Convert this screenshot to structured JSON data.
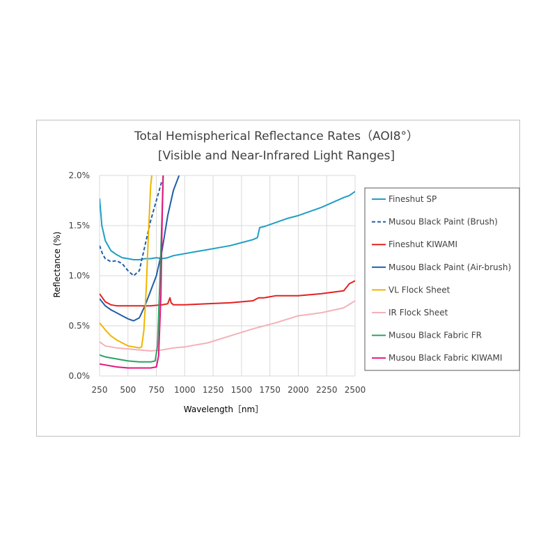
{
  "chart_data": {
    "type": "line",
    "title": "Total Hemispherical Reflectance Rates（AOI8°）",
    "subtitle": "[Visible and Near-Infrared Light Ranges]",
    "xlabel": "Wavelength［nm］",
    "ylabel": "Reflectance (%)",
    "xlim": [
      250,
      2500
    ],
    "ylim": [
      0,
      2.0
    ],
    "x_ticks": [
      250,
      500,
      750,
      1000,
      1250,
      1500,
      1750,
      2000,
      2250,
      2500
    ],
    "y_ticks": [
      "0.0%",
      "0.5%",
      "1.0%",
      "1.5%",
      "2.0%"
    ],
    "grid": true,
    "legend_position": "right",
    "series": [
      {
        "name": "Fineshut SP",
        "color": "#1f9ec4",
        "dash": "solid",
        "x": [
          250,
          270,
          300,
          350,
          400,
          450,
          500,
          550,
          600,
          650,
          700,
          750,
          800,
          850,
          900,
          1000,
          1100,
          1200,
          1300,
          1400,
          1500,
          1600,
          1640,
          1660,
          1700,
          1800,
          1900,
          2000,
          2100,
          2200,
          2300,
          2400,
          2450,
          2500
        ],
        "y": [
          1.77,
          1.5,
          1.35,
          1.25,
          1.21,
          1.18,
          1.17,
          1.16,
          1.16,
          1.17,
          1.17,
          1.18,
          1.17,
          1.18,
          1.2,
          1.22,
          1.24,
          1.26,
          1.28,
          1.3,
          1.33,
          1.36,
          1.38,
          1.48,
          1.49,
          1.53,
          1.57,
          1.6,
          1.64,
          1.68,
          1.73,
          1.78,
          1.8,
          1.84
        ]
      },
      {
        "name": "Musou Black Paint (Brush)",
        "color": "#1f5ea8",
        "dash": "dashed",
        "x": [
          250,
          275,
          300,
          350,
          400,
          450,
          500,
          550,
          600,
          650,
          700,
          750,
          800
        ],
        "y": [
          1.3,
          1.22,
          1.17,
          1.14,
          1.15,
          1.12,
          1.05,
          1.0,
          1.05,
          1.3,
          1.55,
          1.75,
          1.95
        ]
      },
      {
        "name": "Fineshut KIWAMI",
        "color": "#e3211f",
        "dash": "solid",
        "x": [
          250,
          300,
          350,
          400,
          500,
          600,
          700,
          800,
          850,
          870,
          880,
          900,
          1000,
          1200,
          1400,
          1600,
          1650,
          1700,
          1800,
          2000,
          2200,
          2400,
          2450,
          2500
        ],
        "y": [
          0.82,
          0.74,
          0.71,
          0.7,
          0.7,
          0.7,
          0.7,
          0.71,
          0.72,
          0.78,
          0.73,
          0.71,
          0.71,
          0.72,
          0.73,
          0.75,
          0.78,
          0.78,
          0.8,
          0.8,
          0.82,
          0.85,
          0.92,
          0.95
        ]
      },
      {
        "name": "Musou Black Paint (Air-brush)",
        "color": "#1f5ea8",
        "dash": "solid",
        "x": [
          250,
          300,
          350,
          400,
          450,
          500,
          550,
          600,
          650,
          700,
          750,
          800,
          850,
          900,
          950
        ],
        "y": [
          0.77,
          0.7,
          0.66,
          0.63,
          0.6,
          0.57,
          0.55,
          0.58,
          0.7,
          0.85,
          1.0,
          1.25,
          1.6,
          1.85,
          2.0
        ]
      },
      {
        "name": "VL Flock Sheet",
        "color": "#f0b400",
        "dash": "solid",
        "x": [
          250,
          300,
          350,
          400,
          450,
          500,
          550,
          600,
          620,
          640,
          660,
          680,
          700,
          710
        ],
        "y": [
          0.53,
          0.46,
          0.4,
          0.36,
          0.33,
          0.3,
          0.29,
          0.28,
          0.29,
          0.45,
          0.85,
          1.4,
          1.9,
          2.0
        ]
      },
      {
        "name": "IR Flock Sheet",
        "color": "#f4b0b8",
        "dash": "solid",
        "x": [
          250,
          300,
          400,
          500,
          600,
          700,
          800,
          900,
          1000,
          1200,
          1400,
          1600,
          1800,
          2000,
          2200,
          2400,
          2500
        ],
        "y": [
          0.34,
          0.3,
          0.28,
          0.27,
          0.26,
          0.25,
          0.26,
          0.28,
          0.29,
          0.33,
          0.4,
          0.47,
          0.53,
          0.6,
          0.63,
          0.68,
          0.75
        ]
      },
      {
        "name": "Musou Black Fabric FR",
        "color": "#2aa362",
        "dash": "solid",
        "x": [
          250,
          300,
          400,
          500,
          600,
          700,
          740,
          760,
          780,
          800,
          810
        ],
        "y": [
          0.21,
          0.19,
          0.17,
          0.15,
          0.14,
          0.14,
          0.15,
          0.3,
          0.9,
          1.6,
          2.0
        ]
      },
      {
        "name": "Musou Black Fabric KIWAMI",
        "color": "#e5157e",
        "dash": "solid",
        "x": [
          250,
          300,
          400,
          500,
          600,
          700,
          750,
          770,
          790,
          800,
          810
        ],
        "y": [
          0.12,
          0.11,
          0.09,
          0.08,
          0.08,
          0.08,
          0.09,
          0.2,
          0.8,
          1.5,
          2.0
        ]
      }
    ]
  }
}
